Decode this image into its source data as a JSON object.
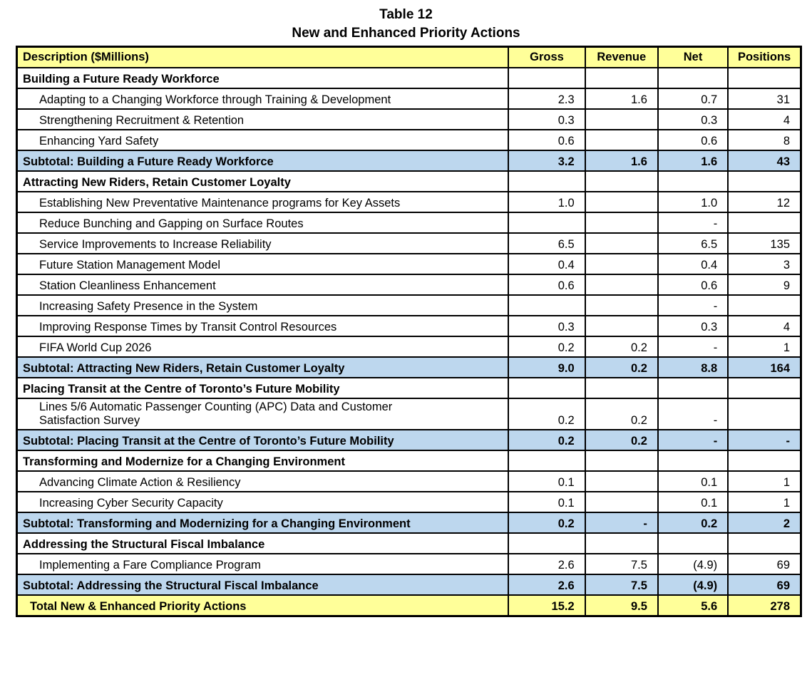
{
  "title": {
    "line1": "Table 12",
    "line2": "New and Enhanced Priority Actions"
  },
  "table": {
    "columns": [
      "Description ($Millions)",
      "Gross",
      "Revenue",
      "Net",
      "Positions"
    ],
    "colors": {
      "header_bg": "#FFFF99",
      "subtotal_bg": "#BDD7EE",
      "total_bg": "#FFFF99",
      "border": "#000000"
    },
    "rows": [
      {
        "type": "section",
        "description": "Building a Future Ready Workforce",
        "gross": "",
        "revenue": "",
        "net": "",
        "positions": ""
      },
      {
        "type": "detail",
        "description": "Adapting to a Changing Workforce through Training & Development",
        "gross": "2.3",
        "revenue": "1.6",
        "net": "0.7",
        "positions": "31"
      },
      {
        "type": "detail",
        "description": "Strengthening Recruitment & Retention",
        "gross": "0.3",
        "revenue": "",
        "net": "0.3",
        "positions": "4"
      },
      {
        "type": "detail",
        "description": "Enhancing Yard Safety",
        "gross": "0.6",
        "revenue": "",
        "net": "0.6",
        "positions": "8"
      },
      {
        "type": "subtotal",
        "description": "Subtotal: Building a Future Ready Workforce",
        "gross": "3.2",
        "revenue": "1.6",
        "net": "1.6",
        "positions": "43"
      },
      {
        "type": "section",
        "description": "Attracting New Riders, Retain Customer Loyalty",
        "gross": "",
        "revenue": "",
        "net": "",
        "positions": ""
      },
      {
        "type": "detail",
        "description": "Establishing New Preventative Maintenance programs for Key Assets",
        "gross": "1.0",
        "revenue": "",
        "net": "1.0",
        "positions": "12"
      },
      {
        "type": "detail",
        "description": "Reduce Bunching and Gapping on Surface Routes",
        "gross": "",
        "revenue": "",
        "net": "-",
        "positions": ""
      },
      {
        "type": "detail",
        "description": "Service Improvements to Increase Reliability",
        "gross": "6.5",
        "revenue": "",
        "net": "6.5",
        "positions": "135"
      },
      {
        "type": "detail",
        "description": "Future Station Management Model",
        "gross": "0.4",
        "revenue": "",
        "net": "0.4",
        "positions": "3"
      },
      {
        "type": "detail",
        "description": "Station Cleanliness Enhancement",
        "gross": "0.6",
        "revenue": "",
        "net": "0.6",
        "positions": "9"
      },
      {
        "type": "detail",
        "description": "Increasing Safety Presence in the System",
        "gross": "",
        "revenue": "",
        "net": "-",
        "positions": ""
      },
      {
        "type": "detail",
        "description": "Improving Response Times by Transit Control Resources",
        "gross": "0.3",
        "revenue": "",
        "net": "0.3",
        "positions": "4"
      },
      {
        "type": "detail",
        "description": "FIFA World Cup 2026",
        "gross": "0.2",
        "revenue": "0.2",
        "net": "-",
        "positions": "1"
      },
      {
        "type": "subtotal",
        "description": "Subtotal: Attracting New Riders, Retain Customer Loyalty",
        "gross": "9.0",
        "revenue": "0.2",
        "net": "8.8",
        "positions": "164"
      },
      {
        "type": "section",
        "description": "Placing Transit at the Centre of Toronto’s Future Mobility",
        "gross": "",
        "revenue": "",
        "net": "",
        "positions": ""
      },
      {
        "type": "detail",
        "tall": true,
        "description": "Lines 5/6 Automatic Passenger Counting (APC) Data and Customer\nSatisfaction Survey",
        "gross": "0.2",
        "revenue": "0.2",
        "net": "-",
        "positions": ""
      },
      {
        "type": "subtotal",
        "description": "Subtotal: Placing Transit at the Centre of Toronto’s Future Mobility",
        "gross": "0.2",
        "revenue": "0.2",
        "net": "-",
        "positions": "-"
      },
      {
        "type": "section",
        "description": "Transforming and Modernize for a Changing Environment",
        "gross": "",
        "revenue": "",
        "net": "",
        "positions": ""
      },
      {
        "type": "detail",
        "description": "Advancing Climate Action & Resiliency",
        "gross": "0.1",
        "revenue": "",
        "net": "0.1",
        "positions": "1"
      },
      {
        "type": "detail",
        "description": "Increasing Cyber Security Capacity",
        "gross": "0.1",
        "revenue": "",
        "net": "0.1",
        "positions": "1"
      },
      {
        "type": "subtotal",
        "description": "Subtotal: Transforming and Modernizing for a Changing Environment",
        "gross": "0.2",
        "revenue": "-",
        "net": "0.2",
        "positions": "2"
      },
      {
        "type": "section",
        "description": "Addressing the Structural Fiscal Imbalance",
        "gross": "",
        "revenue": "",
        "net": "",
        "positions": ""
      },
      {
        "type": "detail",
        "description": "Implementing a Fare Compliance Program",
        "gross": "2.6",
        "revenue": "7.5",
        "net": "(4.9)",
        "positions": "69"
      },
      {
        "type": "subtotal",
        "description": "Subtotal: Addressing the Structural Fiscal Imbalance",
        "gross": "2.6",
        "revenue": "7.5",
        "net": "(4.9)",
        "positions": "69"
      },
      {
        "type": "total",
        "description": "Total New & Enhanced Priority Actions",
        "gross": "15.2",
        "revenue": "9.5",
        "net": "5.6",
        "positions": "278"
      }
    ]
  }
}
